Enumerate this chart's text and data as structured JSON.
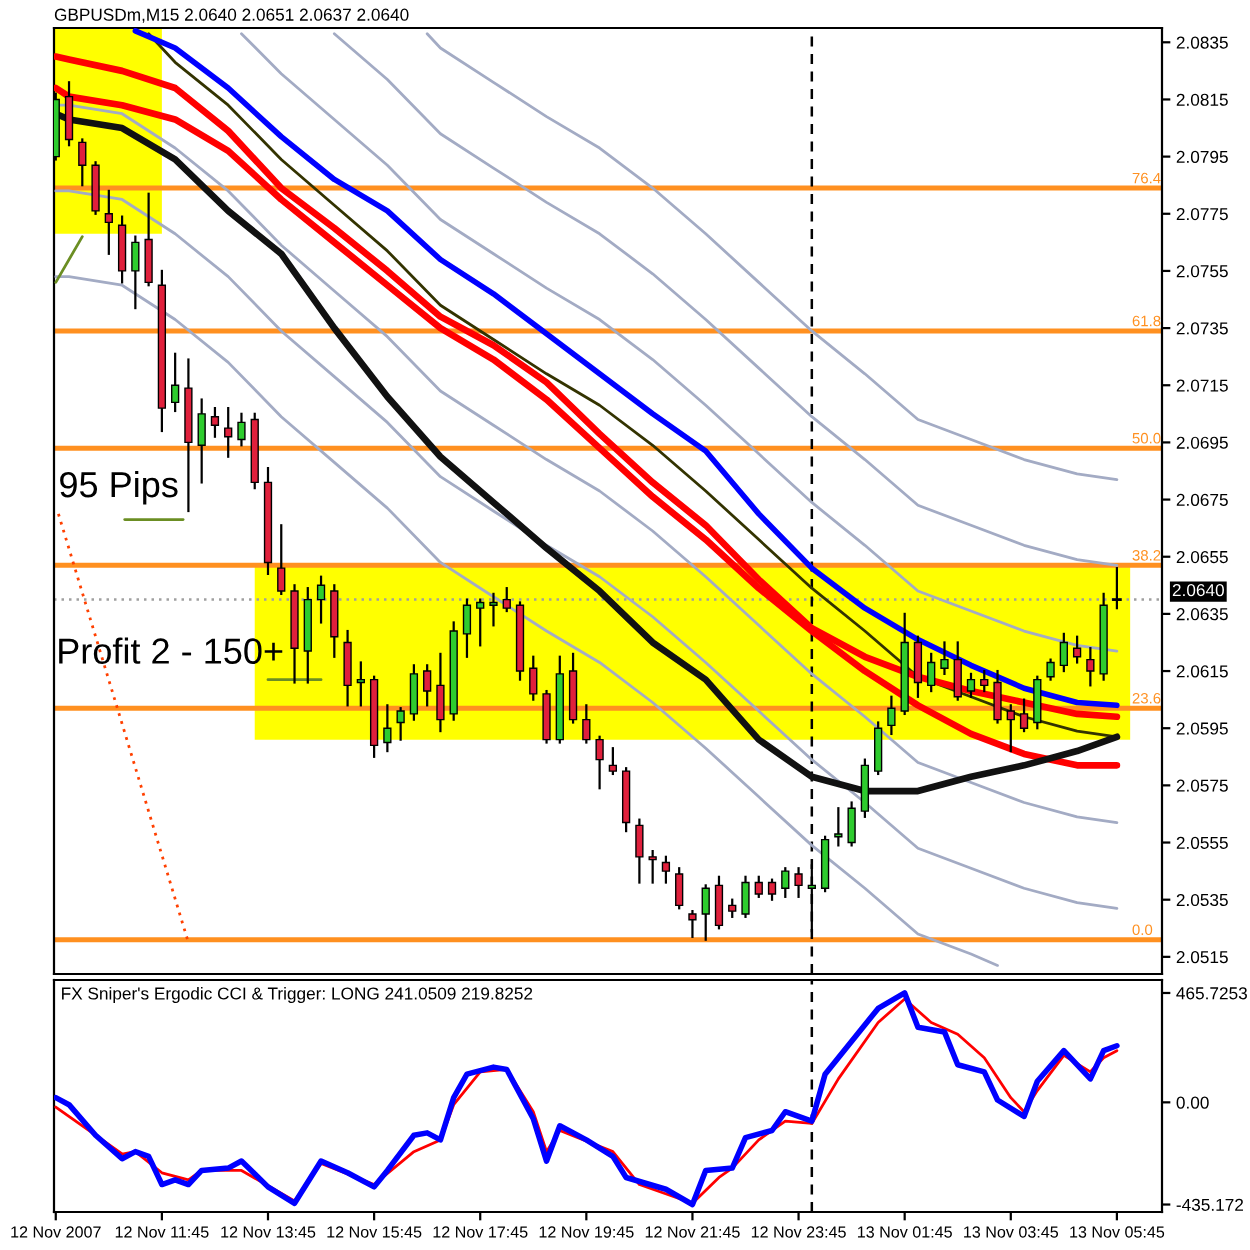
{
  "chart_data": [
    {
      "type": "candlestick",
      "title": "GBPUSDm,M15 2.0640 2.0651 2.0637 2.0640",
      "x": [
        "2007-11-12T09:45",
        "2007-11-12T10:00",
        "2007-11-12T10:15",
        "2007-11-12T10:30",
        "2007-11-12T10:45",
        "2007-11-12T11:00",
        "2007-11-12T11:15",
        "2007-11-12T11:30",
        "2007-11-12T11:45",
        "2007-11-12T12:00",
        "2007-11-12T12:15",
        "2007-11-12T12:30",
        "2007-11-12T12:45",
        "2007-11-12T13:00",
        "2007-11-12T13:15",
        "2007-11-12T13:30",
        "2007-11-12T13:45",
        "2007-11-12T14:00",
        "2007-11-12T14:15",
        "2007-11-12T14:30",
        "2007-11-12T14:45",
        "2007-11-12T15:00",
        "2007-11-12T15:15",
        "2007-11-12T15:30",
        "2007-11-12T15:45",
        "2007-11-12T16:00",
        "2007-11-12T16:15",
        "2007-11-12T16:30",
        "2007-11-12T16:45",
        "2007-11-12T17:00",
        "2007-11-12T17:15",
        "2007-11-12T17:30",
        "2007-11-12T17:45",
        "2007-11-12T18:00",
        "2007-11-12T18:15",
        "2007-11-12T18:30",
        "2007-11-12T18:45",
        "2007-11-12T19:00",
        "2007-11-12T19:15",
        "2007-11-12T19:30",
        "2007-11-12T19:45",
        "2007-11-12T20:00",
        "2007-11-12T20:15",
        "2007-11-12T20:30",
        "2007-11-12T20:45",
        "2007-11-12T21:00",
        "2007-11-12T21:15",
        "2007-11-12T21:30",
        "2007-11-12T21:45",
        "2007-11-12T22:00",
        "2007-11-12T22:15",
        "2007-11-12T22:30",
        "2007-11-12T22:45",
        "2007-11-12T23:00",
        "2007-11-12T23:15",
        "2007-11-12T23:30",
        "2007-11-12T23:45",
        "2007-11-13T00:00",
        "2007-11-13T00:15",
        "2007-11-13T00:30",
        "2007-11-13T00:45",
        "2007-11-13T01:00",
        "2007-11-13T01:15",
        "2007-11-13T01:30",
        "2007-11-13T01:45",
        "2007-11-13T02:00",
        "2007-11-13T02:15",
        "2007-11-13T02:30",
        "2007-11-13T02:45",
        "2007-11-13T03:00",
        "2007-11-13T03:15",
        "2007-11-13T03:30",
        "2007-11-13T03:45",
        "2007-11-13T04:00",
        "2007-11-13T04:15",
        "2007-11-13T04:30",
        "2007-11-13T04:45",
        "2007-11-13T05:00",
        "2007-11-13T05:15",
        "2007-11-13T05:30",
        "2007-11-13T05:45"
      ],
      "ohlc": [
        [
          2.0795,
          2.0817,
          2.0794,
          2.0815
        ],
        [
          2.0816,
          2.0821,
          2.0799,
          2.0801
        ],
        [
          2.08,
          2.0801,
          2.0785,
          2.0792
        ],
        [
          2.0792,
          2.0793,
          2.0775,
          2.0776
        ],
        [
          2.0775,
          2.0783,
          2.0761,
          2.0772
        ],
        [
          2.0771,
          2.0774,
          2.0751,
          2.0755
        ],
        [
          2.0755,
          2.0767,
          2.0742,
          2.0765
        ],
        [
          2.0766,
          2.0782,
          2.075,
          2.0751
        ],
        [
          2.075,
          2.0755,
          2.0699,
          2.0707
        ],
        [
          2.0709,
          2.0726,
          2.0706,
          2.0715
        ],
        [
          2.0714,
          2.0724,
          2.0671,
          2.0695
        ],
        [
          2.0694,
          2.071,
          2.0681,
          2.0705
        ],
        [
          2.0704,
          2.0707,
          2.0697,
          2.0701
        ],
        [
          2.07,
          2.0707,
          2.069,
          2.0697
        ],
        [
          2.0696,
          2.0705,
          2.0694,
          2.0702
        ],
        [
          2.0703,
          2.0705,
          2.0679,
          2.0681
        ],
        [
          2.0681,
          2.0686,
          2.0649,
          2.0653
        ],
        [
          2.0651,
          2.0666,
          2.0642,
          2.0643
        ],
        [
          2.0643,
          2.0645,
          2.0611,
          2.0623
        ],
        [
          2.0622,
          2.0644,
          2.0611,
          2.064
        ],
        [
          2.064,
          2.0648,
          2.0632,
          2.0645
        ],
        [
          2.0643,
          2.0645,
          2.062,
          2.0627
        ],
        [
          2.0625,
          2.0629,
          2.0603,
          2.061
        ],
        [
          2.0611,
          2.0618,
          2.0603,
          2.0612
        ],
        [
          2.0612,
          2.0613,
          2.0585,
          2.0589
        ],
        [
          2.059,
          2.0603,
          2.0587,
          2.0595
        ],
        [
          2.0597,
          2.0602,
          2.0591,
          2.0601
        ],
        [
          2.06,
          2.0617,
          2.0598,
          2.0614
        ],
        [
          2.0615,
          2.0617,
          2.0603,
          2.0608
        ],
        [
          2.061,
          2.0621,
          2.0594,
          2.0598
        ],
        [
          2.06,
          2.0632,
          2.0598,
          2.0629
        ],
        [
          2.0628,
          2.064,
          2.062,
          2.0638
        ],
        [
          2.0637,
          2.064,
          2.0624,
          2.0639
        ],
        [
          2.0638,
          2.0642,
          2.0631,
          2.0639
        ],
        [
          2.064,
          2.0644,
          2.0636,
          2.0637
        ],
        [
          2.0638,
          2.0639,
          2.0612,
          2.0615
        ],
        [
          2.0616,
          2.062,
          2.0605,
          2.0607
        ],
        [
          2.0607,
          2.0608,
          2.059,
          2.0591
        ],
        [
          2.0591,
          2.062,
          2.059,
          2.0614
        ],
        [
          2.0615,
          2.0621,
          2.0597,
          2.0598
        ],
        [
          2.0598,
          2.0603,
          2.059,
          2.0591
        ],
        [
          2.0591,
          2.0592,
          2.0574,
          2.0584
        ],
        [
          2.0582,
          2.0588,
          2.0579,
          2.058
        ],
        [
          2.058,
          2.0581,
          2.0559,
          2.0562
        ],
        [
          2.0561,
          2.0563,
          2.0541,
          2.055
        ],
        [
          2.055,
          2.0552,
          2.0541,
          2.0549
        ],
        [
          2.0548,
          2.055,
          2.0541,
          2.0545
        ],
        [
          2.0544,
          2.0546,
          2.0532,
          2.0533
        ],
        [
          2.053,
          2.0531,
          2.0522,
          2.0528
        ],
        [
          2.053,
          2.054,
          2.0521,
          2.0539
        ],
        [
          2.054,
          2.0543,
          2.0525,
          2.0526
        ],
        [
          2.0533,
          2.0535,
          2.0529,
          2.0531
        ],
        [
          2.053,
          2.0543,
          2.0529,
          2.0541
        ],
        [
          2.0541,
          2.0543,
          2.0536,
          2.0537
        ],
        [
          2.0541,
          2.0542,
          2.0535,
          2.0537
        ],
        [
          2.0539,
          2.0546,
          2.0536,
          2.0545
        ],
        [
          2.0544,
          2.0546,
          2.0536,
          2.054
        ],
        [
          2.0539,
          2.0547,
          2.0524,
          2.054
        ],
        [
          2.0539,
          2.0557,
          2.0538,
          2.0556
        ],
        [
          2.0557,
          2.0567,
          2.0554,
          2.0558
        ],
        [
          2.0555,
          2.0569,
          2.0554,
          2.0567
        ],
        [
          2.0566,
          2.0584,
          2.0564,
          2.0582
        ],
        [
          2.058,
          2.0597,
          2.0579,
          2.0595
        ],
        [
          2.0596,
          2.0606,
          2.0593,
          2.0602
        ],
        [
          2.0601,
          2.0635,
          2.06,
          2.0625
        ],
        [
          2.0625,
          2.0627,
          2.0606,
          2.0611
        ],
        [
          2.061,
          2.0621,
          2.0608,
          2.0618
        ],
        [
          2.0616,
          2.0625,
          2.0614,
          2.0619
        ],
        [
          2.0619,
          2.0625,
          2.0605,
          2.0606
        ],
        [
          2.0608,
          2.0614,
          2.0606,
          2.0612
        ],
        [
          2.0612,
          2.0615,
          2.0608,
          2.061
        ],
        [
          2.0611,
          2.0615,
          2.0597,
          2.0598
        ],
        [
          2.0601,
          2.0603,
          2.0587,
          2.0598
        ],
        [
          2.06,
          2.0605,
          2.0594,
          2.0595
        ],
        [
          2.0597,
          2.0613,
          2.0595,
          2.0612
        ],
        [
          2.0613,
          2.0619,
          2.0612,
          2.0618
        ],
        [
          2.0617,
          2.0628,
          2.0615,
          2.0625
        ],
        [
          2.0623,
          2.0627,
          2.0618,
          2.062
        ],
        [
          2.0619,
          2.0623,
          2.061,
          2.0615
        ],
        [
          2.0614,
          2.0642,
          2.0612,
          2.0638
        ],
        [
          2.064,
          2.0651,
          2.0637,
          2.064
        ]
      ],
      "colors": [
        "#2ecc2e",
        "#e0203c",
        "#e0203c",
        "#e0203c",
        "#e0203c",
        "#e0203c",
        "#2ecc2e",
        "#e0203c",
        "#e0203c",
        "#2ecc2e",
        "#e0203c",
        "#2ecc2e",
        "#e0203c",
        "#e0203c",
        "#2ecc2e",
        "#e0203c",
        "#e0203c",
        "#e0203c",
        "#e0203c",
        "#2ecc2e",
        "#2ecc2e",
        "#e0203c",
        "#e0203c",
        "#2ecc2e",
        "#e0203c",
        "#2ecc2e",
        "#2ecc2e",
        "#2ecc2e",
        "#e0203c",
        "#e0203c",
        "#2ecc2e",
        "#2ecc2e",
        "#2ecc2e",
        "#2ecc2e",
        "#e0203c",
        "#e0203c",
        "#e0203c",
        "#e0203c",
        "#2ecc2e",
        "#e0203c",
        "#e0203c",
        "#e0203c",
        "#e0203c",
        "#e0203c",
        "#e0203c",
        "#e0203c",
        "#e0203c",
        "#e0203c",
        "#e0203c",
        "#2ecc2e",
        "#e0203c",
        "#e0203c",
        "#2ecc2e",
        "#e0203c",
        "#e0203c",
        "#2ecc2e",
        "#e0203c",
        "#2ecc2e",
        "#2ecc2e",
        "#2ecc2e",
        "#2ecc2e",
        "#2ecc2e",
        "#2ecc2e",
        "#2ecc2e",
        "#2ecc2e",
        "#e0203c",
        "#2ecc2e",
        "#2ecc2e",
        "#e0203c",
        "#2ecc2e",
        "#e0203c",
        "#e0203c",
        "#e0203c",
        "#e0203c",
        "#2ecc2e",
        "#2ecc2e",
        "#2ecc2e",
        "#e0203c",
        "#e0203c",
        "#2ecc2e",
        "#000000"
      ],
      "series": [
        {
          "type": "line",
          "color": "#ffff00",
          "x": [
            "2007-11-12T09:43",
            "2007-11-12T11:45"
          ],
          "values": [
            null,
            null
          ],
          "lower": [
            2.0768,
            2.0768
          ],
          "upper": [
            2.084,
            2.084
          ]
        },
        {
          "type": "line",
          "color": "#ffff00",
          "x": [
            "2007-11-12T13:30",
            "2007-11-13T06:00"
          ],
          "values": [
            null,
            null
          ],
          "lower": [
            2.0591,
            2.0591
          ],
          "upper": [
            2.0652,
            2.0652
          ]
        },
        {
          "type": "line",
          "color": "#0000ff",
          "x": [
            "2007-11-12T11:15",
            "2007-11-12T12:00",
            "2007-11-12T13:00",
            "2007-11-12T14:00",
            "2007-11-12T15:00",
            "2007-11-12T16:00",
            "2007-11-12T17:00",
            "2007-11-12T18:00",
            "2007-11-12T19:00",
            "2007-11-12T20:00",
            "2007-11-12T21:00",
            "2007-11-12T22:00",
            "2007-11-12T23:00",
            "2007-11-13T00:00",
            "2007-11-13T01:00",
            "2007-11-13T02:00",
            "2007-11-13T03:00",
            "2007-11-13T04:00",
            "2007-11-13T05:00",
            "2007-11-13T05:45"
          ],
          "values": [
            2.0839,
            2.0833,
            2.0819,
            2.0802,
            2.0787,
            2.0776,
            2.0759,
            2.0747,
            2.0733,
            2.0719,
            2.0705,
            2.0692,
            2.067,
            2.0651,
            2.0637,
            2.0626,
            2.0617,
            2.0609,
            2.0604,
            2.0603
          ]
        },
        {
          "type": "line",
          "color": "#ff0000",
          "x": [
            "2007-11-12T09:45",
            "2007-11-12T10:00",
            "2007-11-12T11:00",
            "2007-11-12T12:00",
            "2007-11-12T13:00",
            "2007-11-12T14:00",
            "2007-11-12T15:00",
            "2007-11-12T16:00",
            "2007-11-12T17:00",
            "2007-11-12T18:00",
            "2007-11-12T19:00",
            "2007-11-12T20:00",
            "2007-11-12T21:00",
            "2007-11-12T22:00",
            "2007-11-12T23:00",
            "2007-11-13T00:00",
            "2007-11-13T01:00",
            "2007-11-13T02:00",
            "2007-11-13T03:00",
            "2007-11-13T04:00",
            "2007-11-13T05:00",
            "2007-11-13T05:45"
          ],
          "values": [
            2.083,
            2.0829,
            2.0825,
            2.0819,
            2.0804,
            2.0784,
            2.077,
            2.0755,
            2.0739,
            2.0729,
            2.0716,
            2.0698,
            2.0681,
            2.0666,
            2.0647,
            2.063,
            2.062,
            2.0613,
            2.0608,
            2.0604,
            2.06,
            2.0599
          ]
        },
        {
          "type": "line",
          "color": "#ff0000",
          "x": [
            "2007-11-12T09:45",
            "2007-11-12T10:00",
            "2007-11-12T11:00",
            "2007-11-12T12:00",
            "2007-11-12T13:00",
            "2007-11-12T14:00",
            "2007-11-12T15:00",
            "2007-11-12T16:00",
            "2007-11-12T17:00",
            "2007-11-12T18:00",
            "2007-11-12T19:00",
            "2007-11-12T20:00",
            "2007-11-12T21:00",
            "2007-11-12T22:00",
            "2007-11-12T23:00",
            "2007-11-13T00:00",
            "2007-11-13T01:00",
            "2007-11-13T02:00",
            "2007-11-13T03:00",
            "2007-11-13T04:00",
            "2007-11-13T05:00",
            "2007-11-13T05:45"
          ],
          "values": [
            2.0819,
            2.0816,
            2.0813,
            2.0808,
            2.0797,
            2.078,
            2.0765,
            2.075,
            2.0735,
            2.0724,
            2.071,
            2.0693,
            2.0676,
            2.0661,
            2.0644,
            2.0629,
            2.0615,
            2.0603,
            2.0593,
            2.0586,
            2.0582,
            2.0582
          ]
        },
        {
          "type": "line",
          "color": "#111111",
          "x": [
            "2007-11-12T09:45",
            "2007-11-12T10:00",
            "2007-11-12T11:00",
            "2007-11-12T12:00",
            "2007-11-12T13:00",
            "2007-11-12T14:00",
            "2007-11-12T15:00",
            "2007-11-12T16:00",
            "2007-11-12T17:00",
            "2007-11-12T18:00",
            "2007-11-12T19:00",
            "2007-11-12T20:00",
            "2007-11-12T21:00",
            "2007-11-12T22:00",
            "2007-11-12T23:00",
            "2007-11-13T00:00",
            "2007-11-13T01:00",
            "2007-11-13T02:00",
            "2007-11-13T03:00",
            "2007-11-13T04:00",
            "2007-11-13T05:00",
            "2007-11-13T05:45"
          ],
          "values": [
            2.081,
            2.0808,
            2.0805,
            2.0794,
            2.0776,
            2.0761,
            2.0735,
            2.0711,
            2.069,
            2.0674,
            2.0658,
            2.0643,
            2.0625,
            2.0612,
            2.0591,
            2.0578,
            2.0573,
            2.0573,
            2.0578,
            2.0582,
            2.0587,
            2.0592
          ]
        },
        {
          "type": "line",
          "color": "#333300",
          "x": [
            "2007-11-12T11:30",
            "2007-11-12T12:00",
            "2007-11-12T13:00",
            "2007-11-12T14:00",
            "2007-11-12T15:00",
            "2007-11-12T16:00",
            "2007-11-12T17:00",
            "2007-11-12T18:00",
            "2007-11-12T19:00",
            "2007-11-12T20:00",
            "2007-11-12T21:00",
            "2007-11-12T22:00",
            "2007-11-12T23:00",
            "2007-11-13T00:00",
            "2007-11-13T01:00",
            "2007-11-13T02:00",
            "2007-11-13T03:00",
            "2007-11-13T04:00",
            "2007-11-13T05:00",
            "2007-11-13T05:45"
          ],
          "values": [
            2.0838,
            2.0828,
            2.0813,
            2.0794,
            2.0778,
            2.0762,
            2.0743,
            2.0731,
            2.0719,
            2.0708,
            2.0694,
            2.0678,
            2.0661,
            2.0644,
            2.0629,
            2.0613,
            2.0606,
            2.0599,
            2.0594,
            2.0592
          ]
        },
        {
          "type": "line",
          "color": "#a3abc4",
          "x": [
            "2007-11-12T13:15",
            "2007-11-12T14:00",
            "2007-11-12T15:00",
            "2007-11-12T16:00",
            "2007-11-12T17:00",
            "2007-11-12T18:00",
            "2007-11-12T19:00",
            "2007-11-12T20:00",
            "2007-11-12T21:00",
            "2007-11-12T22:00",
            "2007-11-12T23:00",
            "2007-11-13T00:00",
            "2007-11-13T01:00",
            "2007-11-13T02:00",
            "2007-11-13T03:00",
            "2007-11-13T04:00",
            "2007-11-13T05:00",
            "2007-11-13T05:45"
          ],
          "values": [
            2.0838,
            2.0824,
            2.0808,
            2.0792,
            2.0773,
            2.0761,
            2.0749,
            2.0738,
            2.0724,
            2.0708,
            2.0691,
            2.0674,
            2.0659,
            2.0643,
            2.0636,
            2.0629,
            2.0624,
            2.0622
          ]
        },
        {
          "type": "line",
          "color": "#a3abc4",
          "x": [
            "2007-11-12T15:00",
            "2007-11-12T16:00",
            "2007-11-12T17:00",
            "2007-11-12T18:00",
            "2007-11-12T19:00",
            "2007-11-12T20:00",
            "2007-11-12T21:00",
            "2007-11-12T22:00",
            "2007-11-12T23:00",
            "2007-11-13T00:00",
            "2007-11-13T01:00",
            "2007-11-13T02:00",
            "2007-11-13T03:00",
            "2007-11-13T04:00",
            "2007-11-13T05:00",
            "2007-11-13T05:45"
          ],
          "values": [
            2.0838,
            2.0822,
            2.0803,
            2.0791,
            2.0779,
            2.0768,
            2.0754,
            2.0738,
            2.0721,
            2.0704,
            2.0689,
            2.0673,
            2.0666,
            2.0659,
            2.0654,
            2.0652
          ]
        },
        {
          "type": "line",
          "color": "#a3abc4",
          "x": [
            "2007-11-12T16:45",
            "2007-11-12T17:00",
            "2007-11-12T18:00",
            "2007-11-12T19:00",
            "2007-11-12T20:00",
            "2007-11-12T21:00",
            "2007-11-12T22:00",
            "2007-11-12T23:00",
            "2007-11-13T00:00",
            "2007-11-13T01:00",
            "2007-11-13T02:00",
            "2007-11-13T03:00",
            "2007-11-13T04:00",
            "2007-11-13T05:00",
            "2007-11-13T05:45"
          ],
          "values": [
            2.0838,
            2.0833,
            2.0821,
            2.0809,
            2.0798,
            2.0784,
            2.0768,
            2.0751,
            2.0734,
            2.0719,
            2.0703,
            2.0696,
            2.0689,
            2.0684,
            2.0682
          ]
        },
        {
          "type": "line",
          "color": "#a3abc4",
          "x": [
            "2007-11-12T09:45",
            "2007-11-12T10:00",
            "2007-11-12T11:00",
            "2007-11-12T12:00",
            "2007-11-12T13:00",
            "2007-11-12T14:00",
            "2007-11-12T15:00",
            "2007-11-12T16:00",
            "2007-11-12T17:00",
            "2007-11-12T18:00",
            "2007-11-12T19:00",
            "2007-11-12T20:00",
            "2007-11-12T21:00",
            "2007-11-12T22:00",
            "2007-11-12T23:00",
            "2007-11-13T00:00",
            "2007-11-13T01:00",
            "2007-11-13T02:00",
            "2007-11-13T03:00",
            "2007-11-13T04:00",
            "2007-11-13T05:00",
            "2007-11-13T05:45"
          ],
          "values": [
            2.0813,
            2.0813,
            2.081,
            2.0798,
            2.0783,
            2.0764,
            2.0748,
            2.0732,
            2.0713,
            2.0701,
            2.0689,
            2.0678,
            2.0664,
            2.0648,
            2.0631,
            2.0614,
            2.0599,
            2.0583,
            2.0576,
            2.0569,
            2.0564,
            2.0562
          ]
        },
        {
          "type": "line",
          "color": "#a3abc4",
          "x": [
            "2007-11-12T09:45",
            "2007-11-12T10:00",
            "2007-11-12T11:00",
            "2007-11-12T12:00",
            "2007-11-12T13:00",
            "2007-11-12T14:00",
            "2007-11-12T15:00",
            "2007-11-12T16:00",
            "2007-11-12T17:00",
            "2007-11-12T18:00",
            "2007-11-12T19:00",
            "2007-11-12T20:00",
            "2007-11-12T21:00",
            "2007-11-12T22:00",
            "2007-11-12T23:00",
            "2007-11-13T00:00",
            "2007-11-13T01:00",
            "2007-11-13T02:00",
            "2007-11-13T03:00",
            "2007-11-13T04:00",
            "2007-11-13T05:00",
            "2007-11-13T05:45"
          ],
          "values": [
            2.0783,
            2.0783,
            2.078,
            2.0768,
            2.0753,
            2.0734,
            2.0718,
            2.0702,
            2.0683,
            2.0671,
            2.0659,
            2.0648,
            2.0634,
            2.0618,
            2.0601,
            2.0584,
            2.0569,
            2.0553,
            2.0546,
            2.0539,
            2.0534,
            2.0532
          ]
        },
        {
          "type": "line",
          "color": "#a3abc4",
          "x": [
            "2007-11-12T09:45",
            "2007-11-12T10:00",
            "2007-11-12T11:00",
            "2007-11-12T12:00",
            "2007-11-12T13:00",
            "2007-11-12T14:00",
            "2007-11-12T15:00",
            "2007-11-12T16:00",
            "2007-11-12T17:00",
            "2007-11-12T18:00",
            "2007-11-12T19:00",
            "2007-11-12T20:00",
            "2007-11-12T21:00",
            "2007-11-12T22:00",
            "2007-11-12T23:00",
            "2007-11-13T00:00",
            "2007-11-13T01:00",
            "2007-11-13T02:00",
            "2007-11-13T03:00",
            "2007-11-13T03:30"
          ],
          "values": [
            2.0753,
            2.0753,
            2.075,
            2.0738,
            2.0723,
            2.0704,
            2.0688,
            2.0672,
            2.0653,
            2.0641,
            2.0629,
            2.0618,
            2.0604,
            2.0588,
            2.0571,
            2.0554,
            2.0539,
            2.0523,
            2.0516,
            2.0512
          ]
        },
        {
          "type": "line",
          "color": "#ff4000",
          "line_style": "dotted",
          "x": [
            "2007-11-12T09:48",
            "2007-11-12T12:15"
          ],
          "values": [
            2.067,
            2.052
          ]
        },
        {
          "type": "line",
          "color": "#6b8e23",
          "x": [
            "2007-11-12T09:45",
            "2007-11-12T10:15"
          ],
          "values": [
            2.0751,
            2.0767
          ]
        },
        {
          "type": "line",
          "color": "#6b8e23",
          "x": [
            "2007-11-12T11:03",
            "2007-11-12T12:09"
          ],
          "values": [
            2.0668,
            2.0668
          ]
        },
        {
          "type": "line",
          "color": "#6b8e23",
          "x": [
            "2007-11-12T13:45",
            "2007-11-12T14:45"
          ],
          "values": [
            2.0612,
            2.0612
          ]
        }
      ],
      "xlim": [
        "2007-11-12T09:43",
        "2007-11-13T06:36"
      ],
      "ylim": [
        2.0509,
        2.084
      ],
      "yticks": [
        2.0835,
        2.0815,
        2.0795,
        2.0775,
        2.0755,
        2.0735,
        2.0715,
        2.0695,
        2.0675,
        2.0655,
        2.0635,
        2.0615,
        2.0595,
        2.0575,
        2.0555,
        2.0535,
        2.0515
      ],
      "tick_labels": "y",
      "ref_lines": [
        {
          "axis": "y",
          "value": 2.0784,
          "color": "#ff9020"
        },
        {
          "axis": "y",
          "value": 2.0734,
          "color": "#ff9020"
        },
        {
          "axis": "y",
          "value": 2.0693,
          "color": "#ff9020"
        },
        {
          "axis": "y",
          "value": 2.0652,
          "color": "#ff9020"
        },
        {
          "axis": "y",
          "value": 2.0602,
          "color": "#ff9020"
        },
        {
          "axis": "y",
          "value": 2.0521,
          "color": "#ff9020"
        },
        {
          "axis": "y",
          "value": 2.064,
          "label": "2.0640",
          "color": "#a0a0a0",
          "line_style": "dotted"
        },
        {
          "axis": "x",
          "value": "2007-11-13T00:00",
          "color": "#000000",
          "line_style": "dashed"
        }
      ],
      "annotations": [
        "95 Pips",
        "Profit 2 - 150+",
        {
          "text": "76.4",
          "x": "2007-11-13T06:02",
          "y": 2.0784
        },
        {
          "text": "61.8",
          "x": "2007-11-13T06:02",
          "y": 2.0734
        },
        {
          "text": "50.0",
          "x": "2007-11-13T06:02",
          "y": 2.0693
        },
        {
          "text": "38.2",
          "x": "2007-11-13T06:02",
          "y": 2.0652
        },
        {
          "text": "23.6",
          "x": "2007-11-13T06:02",
          "y": 2.0602
        },
        {
          "text": "0.0",
          "x": "2007-11-13T06:02",
          "y": 2.0521
        }
      ]
    },
    {
      "type": "line",
      "title": "FX Sniper's Ergodic CCI & Trigger: LONG 241.0509 219.8252",
      "series": [
        {
          "color": "#0000ff",
          "x": [
            "2007-11-12T09:45",
            "2007-11-12T10:00",
            "2007-11-12T10:30",
            "2007-11-12T11:00",
            "2007-11-12T11:15",
            "2007-11-12T11:30",
            "2007-11-12T11:45",
            "2007-11-12T12:00",
            "2007-11-12T12:15",
            "2007-11-12T12:30",
            "2007-11-12T13:00",
            "2007-11-12T13:15",
            "2007-11-12T13:45",
            "2007-11-12T14:15",
            "2007-11-12T14:45",
            "2007-11-12T15:15",
            "2007-11-12T15:45",
            "2007-11-12T16:00",
            "2007-11-12T16:30",
            "2007-11-12T16:45",
            "2007-11-12T17:00",
            "2007-11-12T17:15",
            "2007-11-12T17:30",
            "2007-11-12T18:00",
            "2007-11-12T18:15",
            "2007-11-12T18:45",
            "2007-11-12T19:00",
            "2007-11-12T19:15",
            "2007-11-12T19:45",
            "2007-11-12T20:15",
            "2007-11-12T20:30",
            "2007-11-12T21:15",
            "2007-11-12T21:45",
            "2007-11-12T22:00",
            "2007-11-12T22:30",
            "2007-11-12T22:45",
            "2007-11-12T23:15",
            "2007-11-12T23:30",
            "2007-11-13T00:00",
            "2007-11-13T00:15",
            "2007-11-13T00:30",
            "2007-11-13T01:15",
            "2007-11-13T01:45",
            "2007-11-13T02:00",
            "2007-11-13T02:30",
            "2007-11-13T02:45",
            "2007-11-13T03:15",
            "2007-11-13T03:30",
            "2007-11-13T04:00",
            "2007-11-13T04:15",
            "2007-11-13T04:45",
            "2007-11-13T05:15",
            "2007-11-13T05:30",
            "2007-11-13T05:45"
          ],
          "values": [
            20,
            -10,
            -140,
            -240,
            -210,
            -230,
            -350,
            -330,
            -350,
            -290,
            -280,
            -250,
            -360,
            -430,
            -250,
            -300,
            -360,
            -290,
            -140,
            -130,
            -160,
            20,
            120,
            150,
            140,
            -70,
            -250,
            -100,
            -160,
            -230,
            -320,
            -370,
            -435,
            -290,
            -280,
            -150,
            -120,
            -40,
            -80,
            120,
            190,
            400,
            466,
            320,
            300,
            160,
            130,
            10,
            -60,
            90,
            220,
            100,
            220,
            241
          ]
        },
        {
          "color": "#ff0000",
          "x": [
            "2007-11-12T09:45",
            "2007-11-12T10:30",
            "2007-11-12T11:00",
            "2007-11-12T11:15",
            "2007-11-12T11:45",
            "2007-11-12T12:15",
            "2007-11-12T12:30",
            "2007-11-12T13:15",
            "2007-11-12T14:15",
            "2007-11-12T14:45",
            "2007-11-12T15:45",
            "2007-11-12T16:30",
            "2007-11-12T17:00",
            "2007-11-12T17:15",
            "2007-11-12T17:45",
            "2007-11-12T18:15",
            "2007-11-12T18:45",
            "2007-11-12T19:00",
            "2007-11-12T19:15",
            "2007-11-12T20:15",
            "2007-11-12T20:45",
            "2007-11-12T21:45",
            "2007-11-12T22:15",
            "2007-11-12T22:30",
            "2007-11-12T23:00",
            "2007-11-12T23:30",
            "2007-11-13T00:00",
            "2007-11-13T00:30",
            "2007-11-13T01:15",
            "2007-11-13T01:45",
            "2007-11-13T02:15",
            "2007-11-13T02:45",
            "2007-11-13T03:15",
            "2007-11-13T03:45",
            "2007-11-13T04:00",
            "2007-11-13T04:15",
            "2007-11-13T04:45",
            "2007-11-13T05:15",
            "2007-11-13T05:30",
            "2007-11-13T05:45"
          ],
          "values": [
            -20,
            -140,
            -220,
            -210,
            -300,
            -330,
            -290,
            -290,
            -420,
            -260,
            -350,
            -210,
            -160,
            -10,
            130,
            140,
            -40,
            -210,
            -120,
            -210,
            -350,
            -430,
            -320,
            -280,
            -160,
            -80,
            -90,
            100,
            340,
            440,
            340,
            290,
            190,
            20,
            -40,
            50,
            200,
            130,
            190,
            220
          ]
        }
      ],
      "xlim": [
        "2007-11-12T09:43",
        "2007-11-13T06:36"
      ],
      "ylim": [
        -467,
        521
      ],
      "yticks": [
        465.7253,
        {
          "value": 0,
          "label": "0.00"
        },
        -435.172
      ],
      "xticks": [
        {
          "value": "2007-11-12T09:45",
          "label": "12 Nov 2007"
        },
        {
          "value": "2007-11-12T11:45",
          "label": "12 Nov 11:45"
        },
        {
          "value": "2007-11-12T13:45",
          "label": "12 Nov 13:45"
        },
        {
          "value": "2007-11-12T15:45",
          "label": "12 Nov 15:45"
        },
        {
          "value": "2007-11-12T17:45",
          "label": "12 Nov 17:45"
        },
        {
          "value": "2007-11-12T19:45",
          "label": "12 Nov 19:45"
        },
        {
          "value": "2007-11-12T21:45",
          "label": "12 Nov 21:45"
        },
        {
          "value": "2007-11-12T23:45",
          "label": "12 Nov 23:45"
        },
        {
          "value": "2007-11-13T01:45",
          "label": "13 Nov 01:45"
        },
        {
          "value": "2007-11-13T03:45",
          "label": "13 Nov 03:45"
        },
        {
          "value": "2007-11-13T05:45",
          "label": "13 Nov 05:45"
        }
      ],
      "ref_lines": [
        {
          "axis": "x",
          "value": "2007-11-13T00:00",
          "color": "#000000",
          "line_style": "dashed"
        }
      ]
    }
  ]
}
